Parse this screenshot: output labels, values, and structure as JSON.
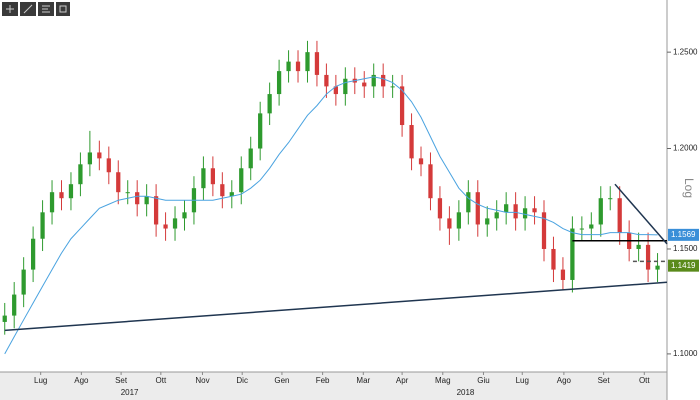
{
  "chart_data": {
    "type": "candlestick",
    "log_scale": true,
    "up_color": "#2e9a2e",
    "down_color": "#d43a3a",
    "x": [
      0,
      1,
      2,
      3,
      4,
      5,
      6,
      7,
      8,
      9,
      10,
      11,
      12,
      13,
      14,
      15,
      16,
      17,
      18,
      19,
      20,
      21,
      22,
      23,
      24,
      25,
      26,
      27,
      28,
      29,
      30,
      31,
      32,
      33,
      34,
      35,
      36,
      37,
      38,
      39,
      40,
      41,
      42,
      43,
      44,
      45,
      46,
      47,
      48,
      49,
      50,
      51,
      52,
      53,
      54,
      55,
      56,
      57,
      58,
      59,
      60,
      61,
      62,
      63,
      64,
      65,
      66,
      67,
      68,
      69
    ],
    "open": [
      1.115,
      1.118,
      1.128,
      1.14,
      1.155,
      1.168,
      1.178,
      1.175,
      1.182,
      1.192,
      1.198,
      1.195,
      1.188,
      1.178,
      1.178,
      1.172,
      1.176,
      1.162,
      1.16,
      1.165,
      1.168,
      1.18,
      1.19,
      1.182,
      1.176,
      1.178,
      1.19,
      1.2,
      1.218,
      1.228,
      1.24,
      1.245,
      1.24,
      1.25,
      1.238,
      1.232,
      1.228,
      1.236,
      1.234,
      1.232,
      1.238,
      1.232,
      1.232,
      1.212,
      1.195,
      1.192,
      1.175,
      1.165,
      1.16,
      1.168,
      1.178,
      1.162,
      1.165,
      1.168,
      1.172,
      1.165,
      1.17,
      1.168,
      1.15,
      1.14,
      1.135,
      1.16,
      1.16,
      1.162,
      1.175,
      1.175,
      1.158,
      1.15,
      1.152,
      1.14
    ],
    "high": [
      1.124,
      1.134,
      1.146,
      1.161,
      1.174,
      1.184,
      1.184,
      1.188,
      1.198,
      1.209,
      1.204,
      1.201,
      1.194,
      1.184,
      1.184,
      1.182,
      1.182,
      1.168,
      1.171,
      1.174,
      1.186,
      1.196,
      1.196,
      1.188,
      1.184,
      1.196,
      1.206,
      1.224,
      1.234,
      1.246,
      1.251,
      1.251,
      1.256,
      1.256,
      1.244,
      1.238,
      1.242,
      1.242,
      1.24,
      1.244,
      1.244,
      1.238,
      1.238,
      1.218,
      1.201,
      1.198,
      1.181,
      1.171,
      1.174,
      1.184,
      1.184,
      1.171,
      1.174,
      1.178,
      1.178,
      1.176,
      1.176,
      1.174,
      1.156,
      1.146,
      1.166,
      1.166,
      1.168,
      1.181,
      1.181,
      1.181,
      1.164,
      1.158,
      1.158,
      1.148
    ],
    "low": [
      1.109,
      1.112,
      1.122,
      1.134,
      1.149,
      1.162,
      1.169,
      1.169,
      1.176,
      1.186,
      1.189,
      1.182,
      1.172,
      1.172,
      1.166,
      1.166,
      1.156,
      1.154,
      1.154,
      1.159,
      1.162,
      1.174,
      1.176,
      1.17,
      1.17,
      1.172,
      1.184,
      1.194,
      1.212,
      1.222,
      1.234,
      1.234,
      1.234,
      1.232,
      1.226,
      1.222,
      1.222,
      1.228,
      1.226,
      1.226,
      1.226,
      1.226,
      1.206,
      1.189,
      1.186,
      1.169,
      1.159,
      1.152,
      1.154,
      1.162,
      1.156,
      1.156,
      1.159,
      1.162,
      1.159,
      1.159,
      1.162,
      1.144,
      1.134,
      1.13,
      1.129,
      1.154,
      1.154,
      1.156,
      1.169,
      1.152,
      1.144,
      1.144,
      1.134,
      1.134
    ],
    "close": [
      1.118,
      1.128,
      1.14,
      1.155,
      1.168,
      1.178,
      1.175,
      1.182,
      1.192,
      1.198,
      1.195,
      1.188,
      1.178,
      1.178,
      1.172,
      1.176,
      1.162,
      1.16,
      1.165,
      1.168,
      1.18,
      1.19,
      1.182,
      1.176,
      1.178,
      1.19,
      1.2,
      1.218,
      1.228,
      1.24,
      1.245,
      1.24,
      1.25,
      1.238,
      1.232,
      1.228,
      1.236,
      1.234,
      1.232,
      1.238,
      1.232,
      1.232,
      1.212,
      1.195,
      1.192,
      1.175,
      1.165,
      1.16,
      1.168,
      1.178,
      1.162,
      1.165,
      1.168,
      1.172,
      1.165,
      1.17,
      1.168,
      1.15,
      1.14,
      1.135,
      1.16,
      1.16,
      1.162,
      1.175,
      1.175,
      1.158,
      1.15,
      1.152,
      1.14,
      1.1419
    ],
    "moving_average": {
      "color": "#4aa3e0",
      "values": [
        1.1,
        1.108,
        1.116,
        1.124,
        1.132,
        1.14,
        1.148,
        1.155,
        1.16,
        1.165,
        1.17,
        1.172,
        1.174,
        1.175,
        1.176,
        1.176,
        1.175,
        1.174,
        1.174,
        1.174,
        1.174,
        1.174,
        1.174,
        1.175,
        1.176,
        1.177,
        1.18,
        1.184,
        1.19,
        1.197,
        1.203,
        1.21,
        1.217,
        1.222,
        1.228,
        1.232,
        1.234,
        1.235,
        1.236,
        1.237,
        1.236,
        1.234,
        1.23,
        1.224,
        1.216,
        1.206,
        1.196,
        1.188,
        1.18,
        1.175,
        1.172,
        1.17,
        1.169,
        1.168,
        1.168,
        1.167,
        1.166,
        1.165,
        1.163,
        1.16,
        1.158,
        1.157,
        1.157,
        1.157,
        1.158,
        1.158,
        1.158,
        1.157,
        1.157,
        1.1569
      ]
    },
    "trend_lines": [
      {
        "x1": 0,
        "y1": 1.111,
        "x2": 70,
        "y2": 1.1339,
        "color": "#1f3550",
        "dashed": false
      },
      {
        "x1": 60,
        "y1": 1.154,
        "x2": 70,
        "y2": 1.154,
        "color": "#000000",
        "dashed": false
      },
      {
        "x1": 64.5,
        "y1": 1.182,
        "x2": 70,
        "y2": 1.1525,
        "color": "#1f3550",
        "dashed": false
      },
      {
        "x1": 66.4,
        "y1": 1.144,
        "x2": 70,
        "y2": 1.144,
        "color": "#555555",
        "dashed": true
      }
    ],
    "last_labels": [
      {
        "value": 1.1569,
        "label": "1.1569",
        "color": "#3a8fd8"
      },
      {
        "value": 1.1419,
        "label": "1.1419",
        "color": "#5a8a1a"
      }
    ],
    "xlim": [
      -0.5,
      70
    ],
    "xticks": [
      {
        "value": 3.8,
        "label": "Lug"
      },
      {
        "value": 8.1,
        "label": "Ago"
      },
      {
        "value": 12.3,
        "label": "Set"
      },
      {
        "value": 16.5,
        "label": "Ott"
      },
      {
        "value": 20.9,
        "label": "Nov"
      },
      {
        "value": 25.1,
        "label": "Dic"
      },
      {
        "value": 29.3,
        "label": "Gen"
      },
      {
        "value": 33.6,
        "label": "Feb"
      },
      {
        "value": 37.9,
        "label": "Mar"
      },
      {
        "value": 42.0,
        "label": "Apr"
      },
      {
        "value": 46.3,
        "label": "Mag"
      },
      {
        "value": 50.6,
        "label": "Giu"
      },
      {
        "value": 54.7,
        "label": "Lug"
      },
      {
        "value": 59.1,
        "label": "Ago"
      },
      {
        "value": 63.3,
        "label": "Set"
      },
      {
        "value": 67.6,
        "label": "Ott"
      }
    ],
    "years": [
      {
        "value": 13.2,
        "label": "2017"
      },
      {
        "value": 48.7,
        "label": "2018"
      }
    ],
    "ylim": [
      1.0916,
      1.2736
    ],
    "yticks": [
      {
        "value": 1.1,
        "label": "1.1000"
      },
      {
        "value": 1.15,
        "label": "1.1500"
      },
      {
        "value": 1.2,
        "label": "1.2000"
      },
      {
        "value": 1.25,
        "label": "1.2500"
      }
    ],
    "scale_label": "Log"
  }
}
